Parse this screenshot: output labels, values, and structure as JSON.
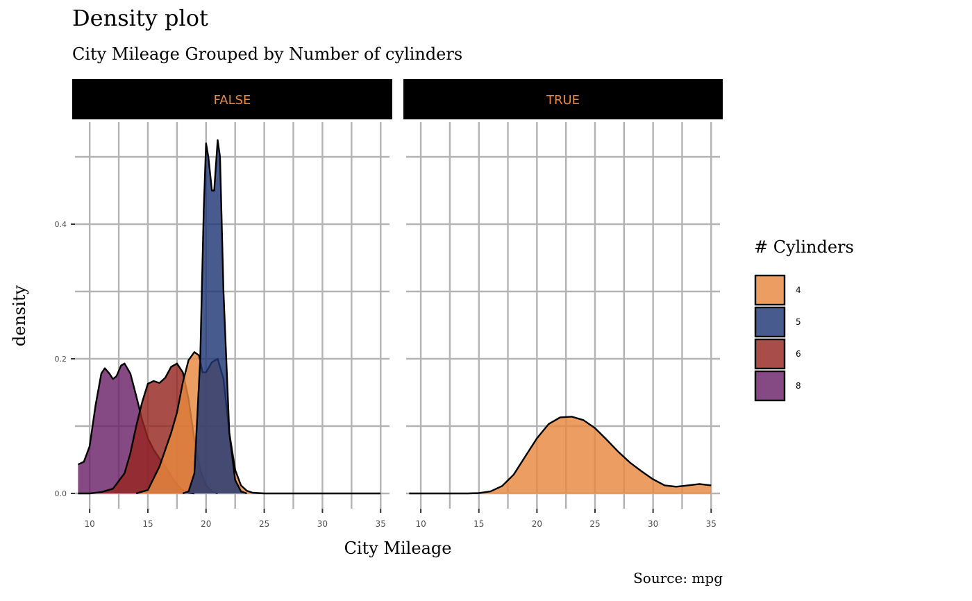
{
  "chart_data": {
    "type": "area",
    "title": "Density plot",
    "subtitle": "City Mileage Grouped by Number of cylinders",
    "xlabel": "City Mileage",
    "ylabel": "density",
    "caption": "Source: mpg",
    "xlim": [
      8.5,
      36
    ],
    "ylim": [
      0,
      0.55
    ],
    "x_ticks": [
      10,
      15,
      20,
      25,
      30,
      35
    ],
    "x_tick_labels": [
      "10",
      "15",
      "20",
      "25",
      "30",
      "35"
    ],
    "y_ticks": [
      0.0,
      0.2,
      0.4
    ],
    "y_tick_labels": [
      "0.0",
      "0.2",
      "0.4"
    ],
    "grid": true,
    "legend": {
      "title": "# Cylinders",
      "position": "right",
      "entries": [
        {
          "label": "4",
          "color": "#E8893F"
        },
        {
          "label": "5",
          "color": "#1F3775"
        },
        {
          "label": "6",
          "color": "#962621"
        },
        {
          "label": "8",
          "color": "#6A2168"
        }
      ]
    },
    "facets": [
      {
        "label": "FALSE",
        "series": [
          {
            "name": "8",
            "color": "#6A2168",
            "points": [
              [
                9,
                0.043
              ],
              [
                9.5,
                0.047
              ],
              [
                10,
                0.07
              ],
              [
                10.5,
                0.13
              ],
              [
                11,
                0.178
              ],
              [
                11.3,
                0.186
              ],
              [
                11.7,
                0.178
              ],
              [
                12,
                0.17
              ],
              [
                12.3,
                0.174
              ],
              [
                12.7,
                0.19
              ],
              [
                13,
                0.193
              ],
              [
                13.5,
                0.178
              ],
              [
                14,
                0.145
              ],
              [
                14.5,
                0.11
              ],
              [
                15,
                0.082
              ],
              [
                15.5,
                0.065
              ],
              [
                16,
                0.052
              ],
              [
                16.5,
                0.04
              ],
              [
                17,
                0.026
              ],
              [
                17.5,
                0.013
              ],
              [
                18,
                0.005
              ],
              [
                18.5,
                0.001
              ],
              [
                19,
                0
              ]
            ]
          },
          {
            "name": "6",
            "color": "#962621",
            "points": [
              [
                9,
                0
              ],
              [
                10,
                0
              ],
              [
                11,
                0.002
              ],
              [
                12,
                0.007
              ],
              [
                13,
                0.03
              ],
              [
                13.5,
                0.06
              ],
              [
                14,
                0.1
              ],
              [
                14.5,
                0.135
              ],
              [
                15,
                0.163
              ],
              [
                15.5,
                0.167
              ],
              [
                16,
                0.164
              ],
              [
                16.5,
                0.172
              ],
              [
                17,
                0.188
              ],
              [
                17.5,
                0.193
              ],
              [
                18,
                0.18
              ],
              [
                18.5,
                0.14
              ],
              [
                19,
                0.08
              ],
              [
                19.5,
                0.035
              ],
              [
                20,
                0.012
              ],
              [
                20.5,
                0.003
              ],
              [
                21,
                0
              ]
            ]
          },
          {
            "name": "4",
            "color": "#E8893F",
            "points": [
              [
                14,
                0
              ],
              [
                15,
                0.005
              ],
              [
                16,
                0.04
              ],
              [
                17,
                0.09
              ],
              [
                17.5,
                0.12
              ],
              [
                18,
                0.165
              ],
              [
                18.5,
                0.198
              ],
              [
                19,
                0.21
              ],
              [
                19.4,
                0.205
              ],
              [
                19.7,
                0.18
              ],
              [
                20,
                0.18
              ],
              [
                20.5,
                0.195
              ],
              [
                21,
                0.2
              ],
              [
                21.5,
                0.17
              ],
              [
                22,
                0.09
              ],
              [
                22.5,
                0.035
              ],
              [
                23,
                0.012
              ],
              [
                23.5,
                0.004
              ],
              [
                24,
                0.001
              ],
              [
                25,
                0
              ],
              [
                35,
                0
              ]
            ]
          },
          {
            "name": "5",
            "color": "#1F3775",
            "points": [
              [
                18,
                0
              ],
              [
                18.5,
                0.003
              ],
              [
                19,
                0.03
              ],
              [
                19.5,
                0.2
              ],
              [
                19.8,
                0.42
              ],
              [
                20,
                0.52
              ],
              [
                20.2,
                0.5
              ],
              [
                20.5,
                0.45
              ],
              [
                20.7,
                0.45
              ],
              [
                21,
                0.525
              ],
              [
                21.2,
                0.5
              ],
              [
                21.5,
                0.3
              ],
              [
                22,
                0.09
              ],
              [
                22.5,
                0.02
              ],
              [
                23,
                0.003
              ],
              [
                23.5,
                0
              ]
            ]
          }
        ]
      },
      {
        "label": "TRUE",
        "series": [
          {
            "name": "4",
            "color": "#E8893F",
            "points": [
              [
                9,
                0
              ],
              [
                12,
                0
              ],
              [
                14,
                0
              ],
              [
                15,
                0.0005
              ],
              [
                16,
                0.003
              ],
              [
                17,
                0.011
              ],
              [
                18,
                0.028
              ],
              [
                19,
                0.055
              ],
              [
                20,
                0.082
              ],
              [
                21,
                0.103
              ],
              [
                22,
                0.113
              ],
              [
                23,
                0.114
              ],
              [
                24,
                0.109
              ],
              [
                25,
                0.097
              ],
              [
                26,
                0.08
              ],
              [
                27,
                0.062
              ],
              [
                28,
                0.046
              ],
              [
                29,
                0.033
              ],
              [
                30,
                0.021
              ],
              [
                31,
                0.012
              ],
              [
                32,
                0.01
              ],
              [
                33,
                0.012
              ],
              [
                34,
                0.014
              ],
              [
                35,
                0.012
              ]
            ]
          }
        ]
      }
    ]
  }
}
